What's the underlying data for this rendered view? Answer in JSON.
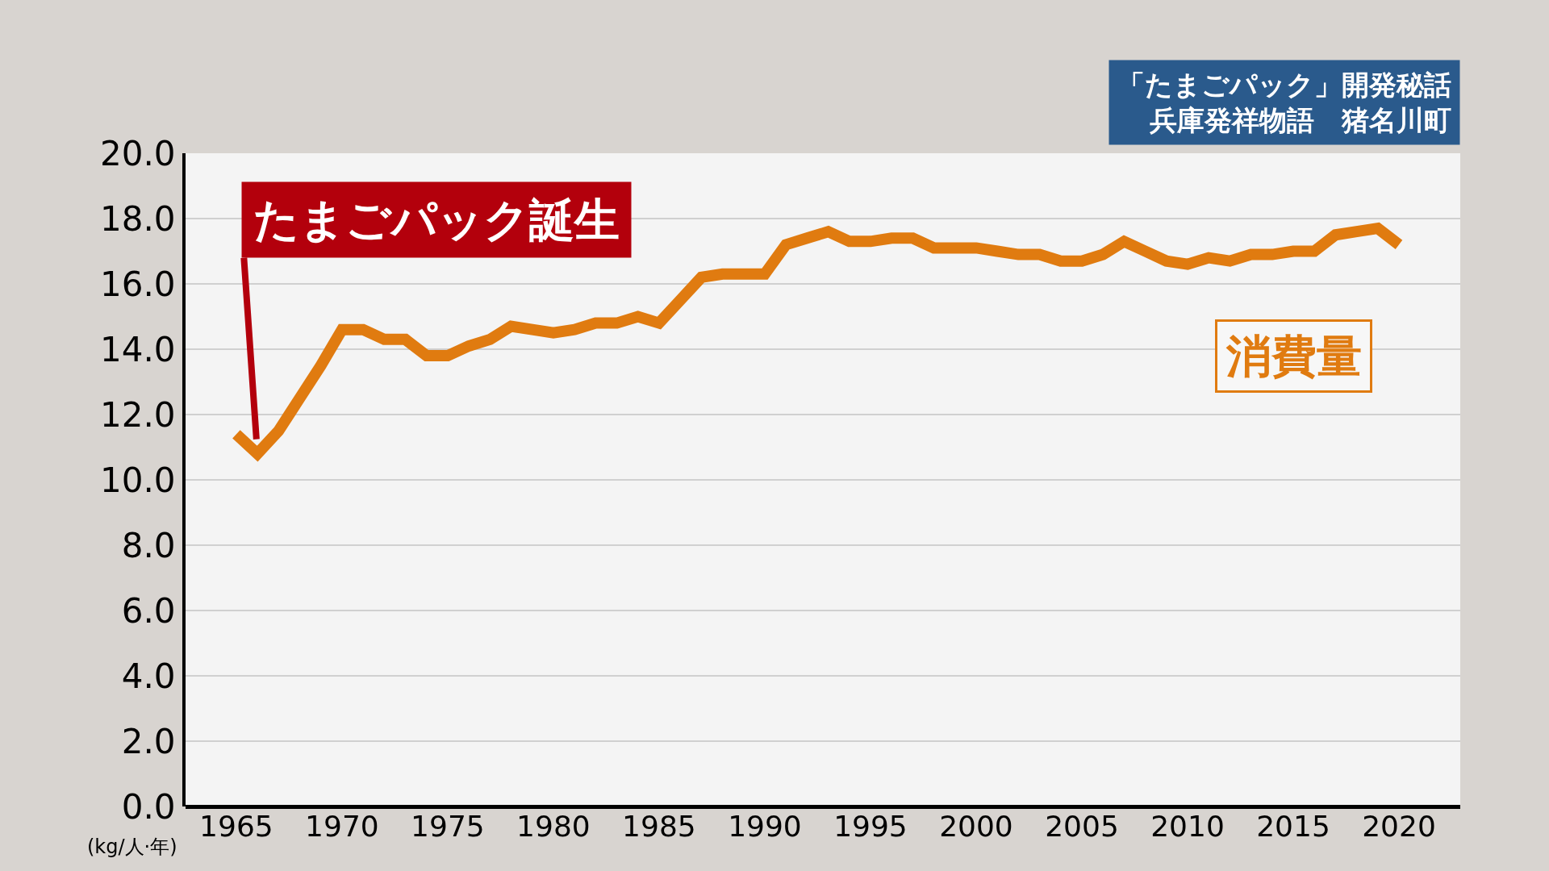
{
  "chart_data": {
    "type": "line",
    "title": "「たまごパック」開発秘話",
    "subtitle": "兵庫発祥物語　猪名川町",
    "ylabel": "(kg/人·年)",
    "x": [
      1965,
      1966,
      1967,
      1968,
      1969,
      1970,
      1971,
      1972,
      1973,
      1974,
      1975,
      1976,
      1977,
      1978,
      1979,
      1980,
      1981,
      1982,
      1983,
      1984,
      1985,
      1986,
      1987,
      1988,
      1989,
      1990,
      1991,
      1992,
      1993,
      1994,
      1995,
      1996,
      1997,
      1998,
      1999,
      2000,
      2001,
      2002,
      2003,
      2004,
      2005,
      2006,
      2007,
      2008,
      2009,
      2010,
      2011,
      2012,
      2013,
      2014,
      2015,
      2016,
      2017,
      2018,
      2019,
      2020
    ],
    "series": [
      {
        "name": "消費量",
        "color": "#e07b10",
        "values": [
          11.4,
          10.8,
          11.5,
          12.5,
          13.5,
          14.6,
          14.6,
          14.3,
          14.3,
          13.8,
          13.8,
          14.1,
          14.3,
          14.7,
          14.6,
          14.5,
          14.6,
          14.8,
          14.8,
          15.0,
          14.8,
          15.5,
          16.2,
          16.3,
          16.3,
          16.3,
          17.2,
          17.4,
          17.6,
          17.3,
          17.3,
          17.4,
          17.4,
          17.1,
          17.1,
          17.1,
          17.0,
          16.9,
          16.9,
          16.7,
          16.7,
          16.9,
          17.3,
          17.0,
          16.7,
          16.6,
          16.8,
          16.7,
          16.9,
          16.9,
          17.0,
          17.0,
          17.5,
          17.6,
          17.7,
          17.2
        ]
      }
    ],
    "annotations": [
      {
        "text": "たまごパック誕生",
        "x": 1966,
        "y": 10.8
      }
    ],
    "xlim": [
      1962.6,
      2022.9
    ],
    "xticks": [
      1965,
      1970,
      1975,
      1980,
      1985,
      1990,
      1995,
      2000,
      2005,
      2010,
      2015,
      2020
    ],
    "ylim": [
      0,
      20
    ],
    "yticks": [
      {
        "value": 0,
        "label": "0.0"
      },
      {
        "value": 2,
        "label": "2.0"
      },
      {
        "value": 4,
        "label": "4.0"
      },
      {
        "value": 6,
        "label": "6.0"
      },
      {
        "value": 8,
        "label": "8.0"
      },
      {
        "value": 10,
        "label": "10.0"
      },
      {
        "value": 12,
        "label": "12.0"
      },
      {
        "value": 14,
        "label": "14.0"
      },
      {
        "value": 16,
        "label": "16.0"
      },
      {
        "value": 18,
        "label": "18.0"
      },
      {
        "value": 20,
        "label": "20.0"
      }
    ],
    "grid": "y",
    "legend": false,
    "marker": "none",
    "line_style": "solid"
  }
}
